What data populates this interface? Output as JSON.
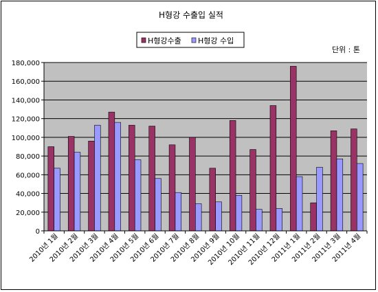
{
  "chart_data": {
    "type": "bar",
    "title": "H형강 수출입 실적",
    "unit_label": "단위 : 톤",
    "legend_position": "top-center",
    "grid": true,
    "plot_background": "#c0c0c0",
    "ylim": [
      0,
      180000
    ],
    "yticks": [
      "0",
      "20,000",
      "40,000",
      "60,000",
      "80,000",
      "100,000",
      "120,000",
      "140,000",
      "160,000",
      "180,000"
    ],
    "ytick_values": [
      0,
      20000,
      40000,
      60000,
      80000,
      100000,
      120000,
      140000,
      160000,
      180000
    ],
    "categories": [
      "2010년 1월",
      "2010년 2월",
      "2010년 3월",
      "2010년 4월",
      "2010년 5월",
      "2010년 6월",
      "2010년 7월",
      "2010년 8월",
      "2010년 9월",
      "2010년 10월",
      "2010년 11월",
      "2010년 12월",
      "2011년 1월",
      "2011년 2월",
      "2011년 3월",
      "2011년 4월"
    ],
    "series": [
      {
        "name": "H형강수출",
        "color": "#993366",
        "values": [
          90000,
          101000,
          96000,
          127000,
          113000,
          112000,
          92000,
          100000,
          67000,
          118000,
          87000,
          134000,
          176000,
          30000,
          107000,
          109000
        ]
      },
      {
        "name": "H형강 수입",
        "color": "#9999ff",
        "values": [
          67000,
          84000,
          113000,
          116000,
          76000,
          56000,
          41000,
          29000,
          31000,
          38000,
          23000,
          24000,
          58000,
          68000,
          77000,
          72000
        ]
      }
    ]
  }
}
